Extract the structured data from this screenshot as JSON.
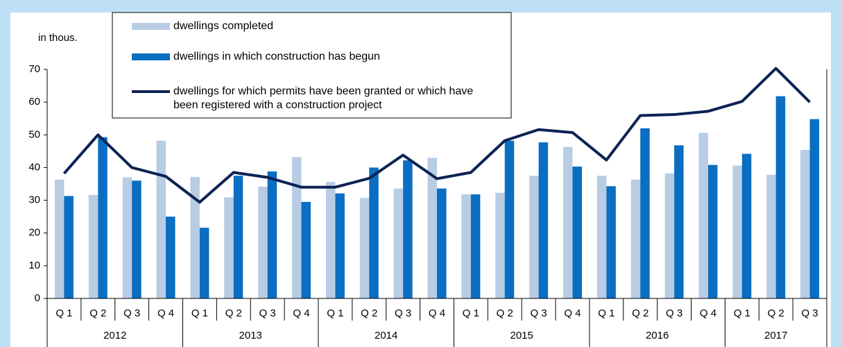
{
  "chart_data": {
    "type": "bar-line",
    "y_label": "in thous.",
    "groups": [
      {
        "label": "2012",
        "categories": [
          "Q 1",
          "Q 2",
          "Q 3",
          "Q 4"
        ]
      },
      {
        "label": "2013",
        "categories": [
          "Q 1",
          "Q 2",
          "Q 3",
          "Q 4"
        ]
      },
      {
        "label": "2014",
        "categories": [
          "Q 1",
          "Q 2",
          "Q 3",
          "Q 4"
        ]
      },
      {
        "label": "2015",
        "categories": [
          "Q 1",
          "Q 2",
          "Q 3",
          "Q 4"
        ]
      },
      {
        "label": "2016",
        "categories": [
          "Q 1",
          "Q 2",
          "Q 3",
          "Q 4"
        ]
      },
      {
        "label": "2017",
        "categories": [
          "Q 1",
          "Q 2",
          "Q 3"
        ]
      }
    ],
    "series": [
      {
        "name": "dwellings completed",
        "mark": "bar",
        "color": "#b8cce4",
        "values": [
          36.3,
          31.6,
          37,
          48.2,
          37.1,
          30.9,
          34.2,
          43.2,
          35.6,
          30.7,
          33.6,
          43,
          31.8,
          32.3,
          37.5,
          46.3,
          37.5,
          36.3,
          38.2,
          50.6,
          40.6,
          37.8,
          45.4
        ]
      },
      {
        "name": "dwellings in which construction has begun",
        "mark": "bar",
        "color": "#0a6ec2",
        "values": [
          31.3,
          49.3,
          36,
          25,
          21.6,
          37.5,
          38.8,
          29.5,
          32.1,
          40,
          42.2,
          33.6,
          31.8,
          48.2,
          47.7,
          40.3,
          34.3,
          52,
          46.8,
          40.8,
          44.2,
          61.8,
          54.8
        ]
      },
      {
        "name": "dwellings for which permits have been granted or which have been registered with a construction project",
        "mark": "line",
        "color": "#0d2253",
        "values": [
          38.2,
          50,
          40,
          37.3,
          29.4,
          38.5,
          37,
          34,
          34,
          36.7,
          43.8,
          36.6,
          38.5,
          48.2,
          51.6,
          50.7,
          42.3,
          55.9,
          56.2,
          57.2,
          60.2,
          70.3,
          60
        ]
      }
    ],
    "ylim": [
      0,
      70
    ],
    "yticks": [
      0,
      10,
      20,
      30,
      40,
      50,
      60,
      70
    ]
  }
}
